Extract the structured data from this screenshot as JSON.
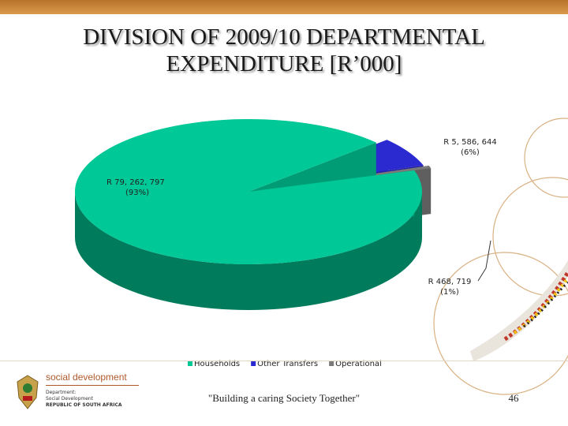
{
  "slide": {
    "title_line1": "DIVISION OF 2009/10 DEPARTMENTAL",
    "title_line2": "EXPENDITURE [R’000]",
    "tagline": "\"Building a caring Society Together\"",
    "page_number": "46"
  },
  "logo": {
    "name": "social development",
    "line1": "Department:",
    "line2": "Social Development",
    "line3": "REPUBLIC OF SOUTH AFRICA"
  },
  "chart_data": {
    "type": "pie",
    "style": "3d-exploded",
    "title": "",
    "legend_position": "bottom",
    "slices": [
      {
        "name": "Households",
        "value": 79262797,
        "value_label": "R 79, 262, 797",
        "percent_label": "(93%)",
        "color": "#00c896"
      },
      {
        "name": "Other Transfers",
        "value": 5586644,
        "value_label": "R 5, 586, 644",
        "percent_label": "(6%)",
        "color": "#2a2ad0"
      },
      {
        "name": "Operational",
        "value": 468719,
        "value_label": "R 468, 719",
        "percent_label": "(1%)",
        "color": "#7a7a7a"
      }
    ]
  }
}
